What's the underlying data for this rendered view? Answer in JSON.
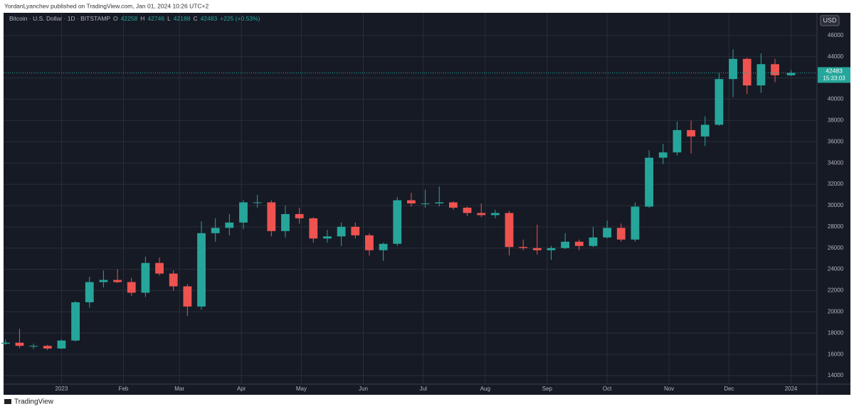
{
  "header": {
    "publisher": "YordanLyanchev published on TradingView.com, Jan 01, 2024 10:26 UTC+2"
  },
  "footer": {
    "brand": "TradingView"
  },
  "chart_data": {
    "type": "candlestick",
    "symbol": "Bitcoin · U.S. Dollar · 1D · BITSTAMP",
    "ohlc_letters": [
      "O",
      "H",
      "L",
      "C"
    ],
    "change": "+225 (+0.53%)",
    "currency": "USD",
    "countdown": "15:33:03",
    "up_color": "#26a69a",
    "down_color": "#ef5350",
    "grid": true,
    "xlim": [
      -29,
      378
    ],
    "ylim": [
      13200,
      48000
    ],
    "yticks": [
      14000,
      16000,
      18000,
      20000,
      22000,
      24000,
      26000,
      28000,
      30000,
      32000,
      34000,
      36000,
      38000,
      40000,
      42000,
      44000,
      46000
    ],
    "xticks": [
      {
        "value": 0,
        "label": "2023"
      },
      {
        "value": 31,
        "label": "Feb"
      },
      {
        "value": 59,
        "label": "Mar"
      },
      {
        "value": 90,
        "label": "Apr"
      },
      {
        "value": 120,
        "label": "May"
      },
      {
        "value": 151,
        "label": "Jun"
      },
      {
        "value": 181,
        "label": "Jul"
      },
      {
        "value": 212,
        "label": "Aug"
      },
      {
        "value": 243,
        "label": "Sep"
      },
      {
        "value": 273,
        "label": "Oct"
      },
      {
        "value": 304,
        "label": "Nov"
      },
      {
        "value": 334,
        "label": "Dec"
      },
      {
        "value": 365,
        "label": "2024"
      }
    ],
    "x": [
      -28,
      -21,
      -14,
      -7,
      0,
      7,
      14,
      21,
      28,
      35,
      42,
      49,
      56,
      63,
      70,
      77,
      84,
      91,
      98,
      105,
      112,
      119,
      126,
      133,
      140,
      147,
      154,
      161,
      168,
      175,
      182,
      189,
      196,
      203,
      210,
      217,
      224,
      231,
      238,
      245,
      252,
      259,
      266,
      273,
      280,
      287,
      294,
      301,
      308,
      315,
      322,
      329,
      336,
      343,
      350,
      357,
      365
    ],
    "open": [
      17000,
      17100,
      16800,
      16800,
      16550,
      17300,
      20900,
      22800,
      23000,
      22800,
      21800,
      24600,
      23600,
      22400,
      20500,
      27400,
      27900,
      28400,
      30300,
      30300,
      27600,
      29200,
      28800,
      26900,
      27100,
      28000,
      27200,
      25800,
      26400,
      30500,
      30200,
      30200,
      30300,
      29800,
      29300,
      29100,
      29300,
      26100,
      26000,
      25800,
      26000,
      26600,
      26200,
      27000,
      27900,
      26800,
      29900,
      34500,
      35000,
      37100,
      36500,
      37600,
      41900,
      43800,
      41300,
      43300,
      42258
    ],
    "high": [
      17400,
      18400,
      17000,
      16900,
      17400,
      21000,
      23300,
      23900,
      24000,
      23200,
      25200,
      25100,
      23900,
      22600,
      28500,
      28800,
      29200,
      30500,
      31000,
      30500,
      30000,
      29800,
      28900,
      27700,
      28400,
      28400,
      27400,
      26500,
      30800,
      31200,
      31500,
      31800,
      30400,
      29900,
      30200,
      29600,
      29500,
      26800,
      28200,
      26200,
      27400,
      26800,
      28000,
      28600,
      28300,
      30300,
      35200,
      35800,
      37900,
      38000,
      38400,
      42500,
      44700,
      43900,
      44300,
      43800,
      42746
    ],
    "low": [
      16900,
      16600,
      16500,
      16400,
      16500,
      17200,
      20400,
      22300,
      22700,
      21500,
      21400,
      23400,
      22000,
      19600,
      20200,
      26600,
      27200,
      27800,
      29800,
      27100,
      27000,
      28300,
      26500,
      26500,
      26200,
      26900,
      25300,
      24800,
      26200,
      29900,
      29800,
      29900,
      29600,
      29000,
      28900,
      28800,
      25300,
      25800,
      25400,
      24900,
      25900,
      25800,
      26100,
      26900,
      26600,
      26600,
      29800,
      33900,
      34700,
      34900,
      35600,
      37500,
      40200,
      40500,
      40600,
      41600,
      42188
    ],
    "close": [
      17100,
      16800,
      16800,
      16550,
      17300,
      20900,
      22800,
      23000,
      22800,
      21800,
      24600,
      23600,
      22400,
      20500,
      27400,
      27900,
      28400,
      30300,
      30300,
      27600,
      29200,
      28800,
      26900,
      27100,
      28000,
      27200,
      25800,
      26400,
      30500,
      30200,
      30200,
      30300,
      29800,
      29300,
      29100,
      29300,
      26100,
      26000,
      25800,
      26000,
      26600,
      26200,
      27000,
      27900,
      26800,
      29900,
      34500,
      35000,
      37100,
      36500,
      37600,
      41900,
      43800,
      41300,
      43300,
      42258,
      42483
    ]
  }
}
